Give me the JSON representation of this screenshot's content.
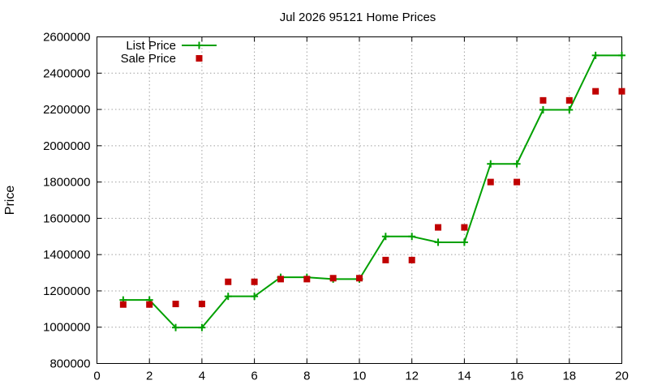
{
  "chart_data": {
    "type": "line",
    "title": "Jul 2026 95121 Home Prices",
    "xlabel": "",
    "ylabel": "Price",
    "xlim": [
      0,
      20
    ],
    "ylim": [
      800000,
      2600000
    ],
    "x_ticks": [
      "0",
      "2",
      "4",
      "6",
      "8",
      "10",
      "12",
      "14",
      "16",
      "18",
      "20"
    ],
    "y_ticks": [
      "800000",
      "1000000",
      "1200000",
      "1400000",
      "1600000",
      "1800000",
      "2000000",
      "2200000",
      "2400000",
      "2600000"
    ],
    "grid": true,
    "legend_position": "top-left",
    "x": [
      1,
      2,
      3,
      4,
      5,
      6,
      7,
      8,
      9,
      10,
      11,
      12,
      13,
      14,
      15,
      16,
      17,
      18,
      19,
      20
    ],
    "series": [
      {
        "name": "List Price",
        "style": "line+points",
        "color": "#00a000",
        "values": [
          1150000,
          1150000,
          998000,
          998000,
          1170000,
          1170000,
          1275000,
          1275000,
          1265000,
          1265000,
          1500000,
          1500000,
          1468000,
          1468000,
          1900000,
          1900000,
          2198000,
          2198000,
          2498000,
          2498000
        ]
      },
      {
        "name": "Sale Price",
        "style": "points",
        "color": "#c00000",
        "values": [
          1125000,
          1125000,
          1128000,
          1128000,
          1250000,
          1250000,
          1265000,
          1265000,
          1270000,
          1270000,
          1370000,
          1370000,
          1550000,
          1550000,
          1800000,
          1800000,
          2250000,
          2250000,
          2300000,
          2300000
        ]
      }
    ]
  }
}
